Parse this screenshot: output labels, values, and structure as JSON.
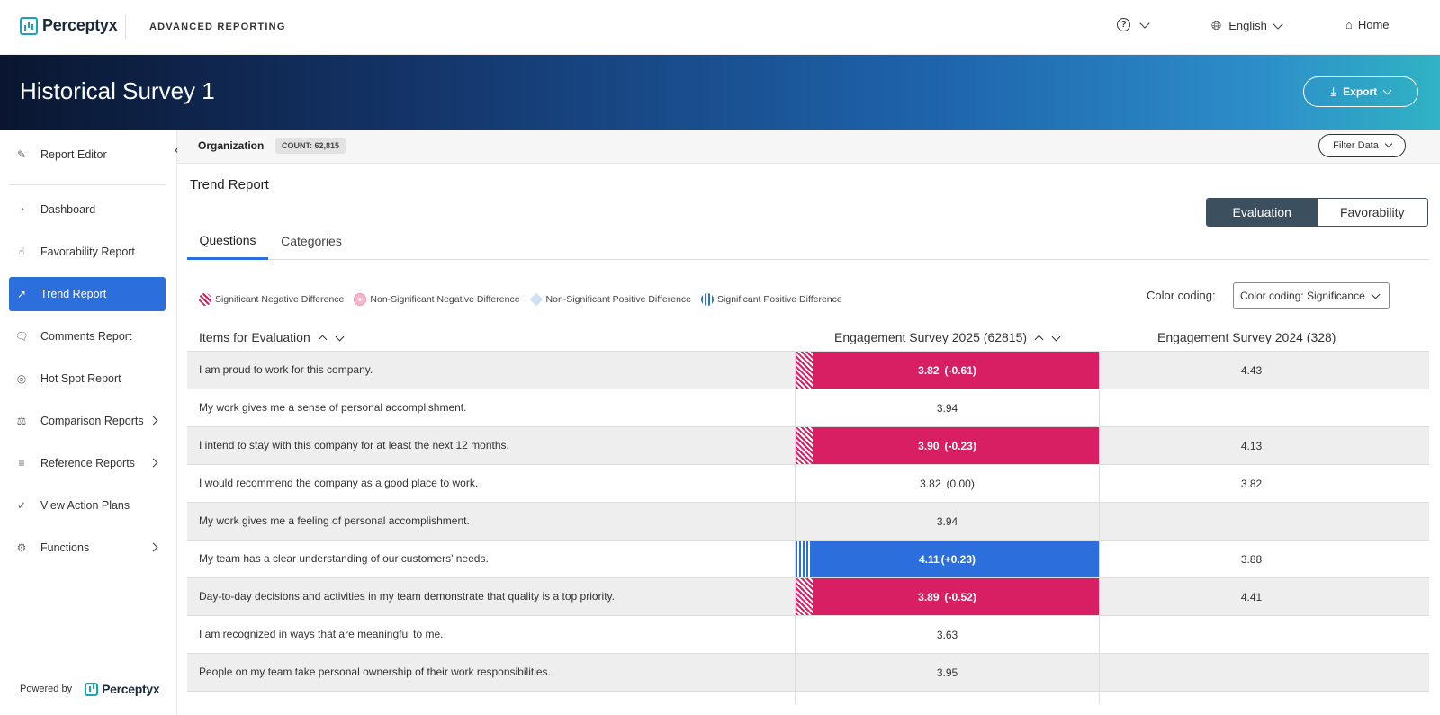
{
  "topbar": {
    "brand": "Perceptyx",
    "product": "ADVANCED REPORTING",
    "help_icon": "question-circle-icon",
    "language": "English",
    "home": "Home"
  },
  "banner": {
    "title": "Historical Survey 1",
    "export_label": "Export"
  },
  "sidebar": {
    "items": [
      {
        "label": "Report Editor",
        "icon": "edit-icon"
      },
      {
        "label": "Dashboard",
        "icon": "gauge-icon"
      },
      {
        "label": "Favorability Report",
        "icon": "thumbs-up-icon"
      },
      {
        "label": "Trend Report",
        "icon": "trend-icon"
      },
      {
        "label": "Comments Report",
        "icon": "comments-icon"
      },
      {
        "label": "Hot Spot Report",
        "icon": "target-icon"
      },
      {
        "label": "Comparison Reports",
        "icon": "scale-icon"
      },
      {
        "label": "Reference Reports",
        "icon": "bars-icon"
      },
      {
        "label": "View Action Plans",
        "icon": "check-circle-icon"
      },
      {
        "label": "Functions",
        "icon": "gear-icon"
      }
    ],
    "powered_by": "Powered by",
    "powered_brand": "Perceptyx"
  },
  "filterbar": {
    "org": "Organization",
    "count": "COUNT: 62,815",
    "filter_label": "Filter Data"
  },
  "report": {
    "title": "Trend Report",
    "toggle": {
      "evaluation": "Evaluation",
      "favorability": "Favorability"
    },
    "tabs": {
      "questions": "Questions",
      "categories": "Categories"
    },
    "legend": {
      "sig_neg": "Significant Negative Difference",
      "nonsig_neg": "Non-Significant Negative Difference",
      "nonsig_pos": "Non-Significant Positive Difference",
      "sig_pos": "Significant Positive Difference"
    },
    "color_coding_label": "Color coding:",
    "color_coding_value": "Color coding: Significance"
  },
  "table": {
    "headers": {
      "items": "Items for Evaluation",
      "col1": "Engagement Survey 2025 (62815)",
      "col2": "Engagement Survey 2024 (328)"
    },
    "rows": [
      {
        "question": "I am proud to work for this company.",
        "score": "3.82",
        "delta": "(-0.61)",
        "prior": "4.43",
        "status": "neg"
      },
      {
        "question": "My work gives me a sense of personal accomplishment.",
        "score": "3.94",
        "delta": "",
        "prior": "",
        "status": "none"
      },
      {
        "question": "I intend to stay with this company for at least the next 12 months.",
        "score": "3.90",
        "delta": "(-0.23)",
        "prior": "4.13",
        "status": "neg"
      },
      {
        "question": "I would recommend the company as a good place to work.",
        "score": "3.82",
        "delta": "(0.00)",
        "prior": "3.82",
        "status": "none"
      },
      {
        "question": "My work gives me a feeling of personal accomplishment.",
        "score": "3.94",
        "delta": "",
        "prior": "",
        "status": "none"
      },
      {
        "question": "My team has a clear understanding of our customers' needs.",
        "score": "4.11",
        "delta": "(+0.23)",
        "prior": "3.88",
        "status": "pos"
      },
      {
        "question": "Day-to-day decisions and activities in my team demonstrate that quality is a top priority.",
        "score": "3.89",
        "delta": "(-0.52)",
        "prior": "4.41",
        "status": "neg"
      },
      {
        "question": "I am recognized in ways that are meaningful to me.",
        "score": "3.63",
        "delta": "",
        "prior": "",
        "status": "none"
      },
      {
        "question": "People on my team take personal ownership of their work responsibilities.",
        "score": "3.95",
        "delta": "",
        "prior": "",
        "status": "none"
      }
    ]
  }
}
